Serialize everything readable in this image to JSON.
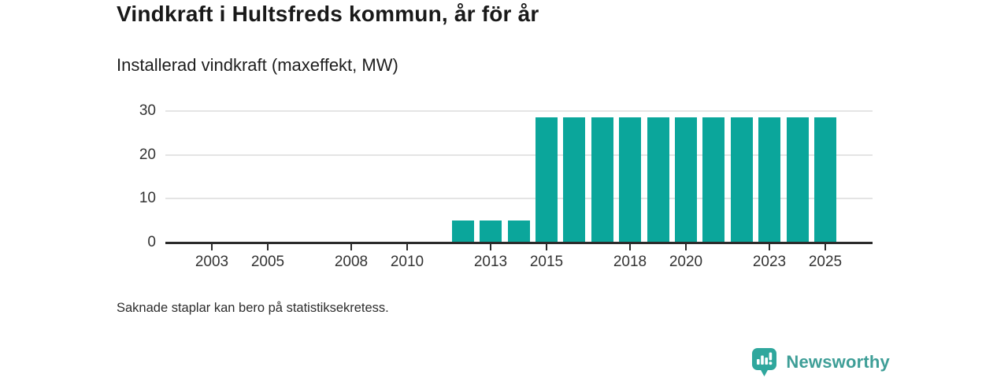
{
  "page": {
    "title": "Vindkraft i Hultsfreds kommun, år för år",
    "subtitle": "Installerad vindkraft (maxeffekt, MW)",
    "footnote": "Saknade staplar kan bero på statistiksekretess."
  },
  "branding": {
    "logo_text": "Newsworthy",
    "logo_icon": "bar-chart-speech-bubble-icon",
    "logo_text_color": "#3e9e97",
    "logo_icon_color": "#2fa79d"
  },
  "chart_data": {
    "type": "bar",
    "title": "Vindkraft i Hultsfreds kommun, år för år",
    "subtitle": "Installerad vindkraft (maxeffekt, MW)",
    "xlabel": "",
    "ylabel": "Installerad vindkraft (maxeffekt, MW)",
    "categories": [
      2002,
      2003,
      2004,
      2005,
      2006,
      2007,
      2008,
      2009,
      2010,
      2011,
      2012,
      2013,
      2014,
      2015,
      2016,
      2017,
      2018,
      2019,
      2020,
      2021,
      2022,
      2023,
      2024,
      2025
    ],
    "values": [
      null,
      null,
      null,
      null,
      null,
      null,
      null,
      null,
      null,
      null,
      5,
      5,
      5,
      28.5,
      28.5,
      28.5,
      28.5,
      28.5,
      28.5,
      28.5,
      28.5,
      28.5,
      28.5,
      28.5
    ],
    "x_tick_labels": [
      "2003",
      "2005",
      "2008",
      "2010",
      "2013",
      "2015",
      "2018",
      "2020",
      "2023",
      "2025"
    ],
    "y_ticks": [
      0,
      10,
      20,
      30
    ],
    "ylim": [
      0,
      30
    ],
    "xlim": [
      2001.3,
      2026.8
    ],
    "bar_color": "#0ba69b",
    "gridline_color": "#e4e4e4",
    "axis_color": "#2b2b2b",
    "grid": "horizontal",
    "legend_position": "none",
    "annotation": "Saknade staplar kan bero på statistiksekretess."
  }
}
